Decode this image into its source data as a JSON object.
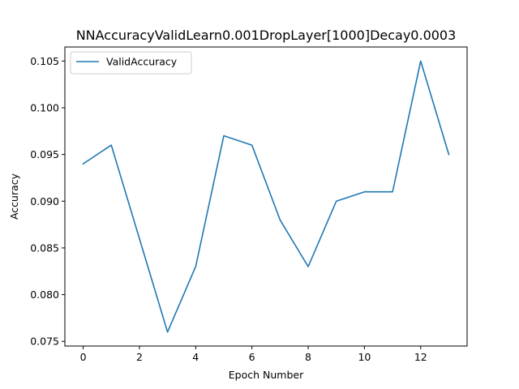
{
  "chart_data": {
    "type": "line",
    "title": "NNAccuracyValidLearn0.001DropLayer[1000]Decay0.0003",
    "xlabel": "Epoch Number",
    "ylabel": "Accuracy",
    "x": [
      0,
      1,
      2,
      3,
      4,
      5,
      6,
      7,
      8,
      9,
      10,
      11,
      12,
      13
    ],
    "series": [
      {
        "name": "ValidAccuracy",
        "color": "#1f77b4",
        "values": [
          0.094,
          0.096,
          0.086,
          0.076,
          0.083,
          0.097,
          0.096,
          0.088,
          0.083,
          0.09,
          0.091,
          0.091,
          0.105,
          0.095
        ]
      }
    ],
    "xlim": [
      -0.65,
      13.65
    ],
    "ylim": [
      0.0745,
      0.1065
    ],
    "xticks": [
      0,
      2,
      4,
      6,
      8,
      10,
      12
    ],
    "xtick_labels": [
      "0",
      "2",
      "4",
      "6",
      "8",
      "10",
      "12"
    ],
    "yticks": [
      0.075,
      0.08,
      0.085,
      0.09,
      0.095,
      0.1,
      0.105
    ],
    "ytick_labels": [
      "0.075",
      "0.080",
      "0.085",
      "0.090",
      "0.095",
      "0.100",
      "0.105"
    ],
    "grid": false,
    "legend_position": "upper-left"
  }
}
